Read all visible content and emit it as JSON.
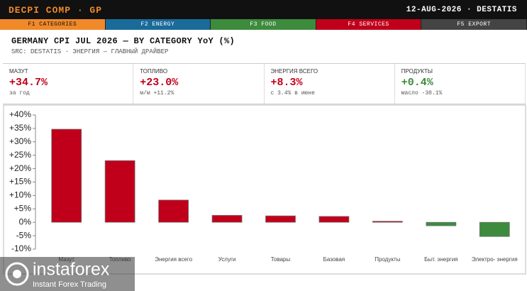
{
  "header": {
    "title": "DECPI COMP · GP",
    "date": "12-AUG-2026 · DESTATIS"
  },
  "tabs": [
    {
      "label": "F1 CATEGORIES",
      "color": "#f0892a",
      "text_color": "#111"
    },
    {
      "label": "F2 ENERGY",
      "color": "#1a6a9a",
      "text_color": "#fff"
    },
    {
      "label": "F3 FOOD",
      "color": "#3d8b3d",
      "text_color": "#fff"
    },
    {
      "label": "F4 SERVICES",
      "color": "#c0001a",
      "text_color": "#fff"
    },
    {
      "label": "F5 EXPORT",
      "color": "#444444",
      "text_color": "#fff"
    }
  ],
  "kpis": [
    {
      "label": "МАЗУТ",
      "value": "+34.7%",
      "note": "за год",
      "color": "#c0001a"
    },
    {
      "label": "ТОПЛИВО",
      "value": "+23.0%",
      "note": "м/м +11.2%",
      "color": "#c0001a"
    },
    {
      "label": "ЭНЕРГИЯ ВСЕГО",
      "value": "+8.3%",
      "note": "с 3.4% в июне",
      "color": "#c0001a"
    },
    {
      "label": "ПРОДУКТЫ",
      "value": "+0.4%",
      "note": "масло -30.1%",
      "color": "#3d8b3d"
    }
  ],
  "chart_data": {
    "type": "bar",
    "title": "GERMANY CPI JUL 2026 — BY CATEGORY YoY (%)",
    "subtitle": "SRC: DESTATIS · ЭНЕРГИЯ — ГЛАВНЫЙ ДРАЙВЕР",
    "categories": [
      "Мазут",
      "Топливо",
      "Энергия всего",
      "Услуги",
      "Товары",
      "Базовая",
      "Продукты",
      "Быт. энергия",
      "Электро- энергия"
    ],
    "values": [
      34.7,
      23.0,
      8.3,
      2.6,
      2.4,
      2.2,
      0.4,
      -1.3,
      -5.3
    ],
    "colors": [
      "#c0001a",
      "#c0001a",
      "#c0001a",
      "#c0001a",
      "#c0001a",
      "#c0001a",
      "#c0001a",
      "#3d8b3d",
      "#3d8b3d"
    ],
    "ylim": [
      -10,
      40
    ],
    "yticks": [
      {
        "value": -10,
        "label": "-10%"
      },
      {
        "value": -5,
        "label": "-5%"
      },
      {
        "value": 0,
        "label": "0%"
      },
      {
        "value": 5,
        "label": "+5%"
      },
      {
        "value": 10,
        "label": "+10%"
      },
      {
        "value": 15,
        "label": "+15%"
      },
      {
        "value": 20,
        "label": "+20%"
      },
      {
        "value": 25,
        "label": "+25%"
      },
      {
        "value": 30,
        "label": "+30%"
      },
      {
        "value": 35,
        "label": "+35%"
      },
      {
        "value": 40,
        "label": "+40%"
      }
    ],
    "grid": false
  },
  "watermark": {
    "name": "instaforex",
    "tagline": "Instant Forex Trading"
  }
}
